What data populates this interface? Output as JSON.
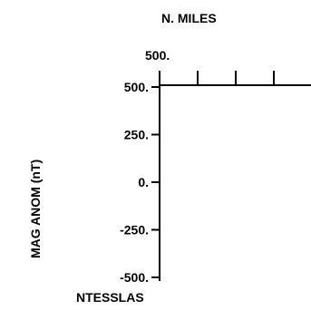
{
  "chart_data": {
    "type": "line",
    "title": "",
    "x_axis": {
      "label": "N. MILES",
      "start_label": "500.",
      "start_value": 500,
      "major_tick_count": 8
    },
    "y_axis": {
      "label": "MAG ANOM (nT)",
      "unit_label": "NTESSLAS",
      "ticks": [
        {
          "value": 500,
          "label": "500."
        },
        {
          "value": 250,
          "label": "250."
        },
        {
          "value": 0,
          "label": "0."
        },
        {
          "value": -250,
          "label": "-250."
        },
        {
          "value": -500,
          "label": "-500."
        }
      ],
      "ylim": [
        -500,
        500
      ]
    },
    "grid": false,
    "series": []
  }
}
